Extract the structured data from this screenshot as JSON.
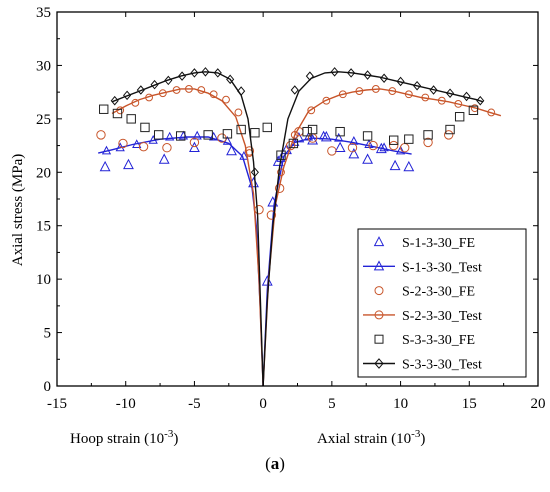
{
  "figure": {
    "caption_open": "(",
    "caption_letter": "a",
    "caption_close": ")"
  },
  "chart_data": {
    "type": "scatter",
    "ylabel": "Axial stress (MPa)",
    "xlabel_left": "Hoop strain (10",
    "xlabel_left_sup": "-3",
    "xlabel_left_close": ")",
    "xlabel_right": "Axial strain (10",
    "xlabel_right_sup": "-3",
    "xlabel_right_close": ")",
    "xlim": [
      -15,
      20
    ],
    "ylim": [
      0,
      35
    ],
    "x_ticks": [
      -15,
      -10,
      -5,
      0,
      5,
      10,
      15,
      20
    ],
    "y_ticks": [
      0,
      5,
      10,
      15,
      20,
      25,
      30,
      35
    ],
    "legend_position": "bottom-right",
    "series": [
      {
        "name": "S-1-3-30_FE",
        "kind": "markers",
        "marker": "triangle",
        "color": "#2323d6",
        "points": [
          [
            -11.5,
            20.5
          ],
          [
            -9.8,
            20.7
          ],
          [
            -7.2,
            21.2
          ],
          [
            -5.0,
            22.3
          ],
          [
            -2.3,
            22.0
          ],
          [
            -0.7,
            19.0
          ],
          [
            0.3,
            9.8
          ],
          [
            0.7,
            17.2
          ],
          [
            1.1,
            21.0
          ],
          [
            1.7,
            22.1
          ],
          [
            2.6,
            23.2
          ],
          [
            3.6,
            23.0
          ],
          [
            4.6,
            23.3
          ],
          [
            5.6,
            22.3
          ],
          [
            6.6,
            21.7
          ],
          [
            7.6,
            21.2
          ],
          [
            8.6,
            22.2
          ],
          [
            9.6,
            20.6
          ],
          [
            10.6,
            20.5
          ]
        ]
      },
      {
        "name": "S-1-3-30_Test",
        "kind": "line",
        "marker": "triangle",
        "color": "#2323d6",
        "points": [
          [
            0,
            0
          ],
          [
            -0.2,
            7.0
          ],
          [
            -0.5,
            15.0
          ],
          [
            -0.8,
            18.5
          ],
          [
            -1.5,
            21.5
          ],
          [
            -2.5,
            22.7
          ],
          [
            -4.0,
            23.3
          ],
          [
            -5.5,
            23.3
          ],
          [
            -7.5,
            23.1
          ],
          [
            -9.5,
            22.6
          ],
          [
            -11.0,
            22.1
          ],
          [
            -12.0,
            21.8
          ],
          [
            0.3,
            9.0
          ],
          [
            0.8,
            17.0
          ],
          [
            1.5,
            21.5
          ],
          [
            2.3,
            22.8
          ],
          [
            3.5,
            23.2
          ],
          [
            5.0,
            23.1
          ],
          [
            6.5,
            22.8
          ],
          [
            8.0,
            22.4
          ],
          [
            9.5,
            22.0
          ],
          [
            10.8,
            21.7
          ]
        ],
        "line_segments": [
          [
            [
              0,
              0
            ],
            [
              -0.2,
              7.0
            ],
            [
              -0.5,
              15.0
            ],
            [
              -0.8,
              18.5
            ],
            [
              -1.5,
              21.5
            ],
            [
              -2.5,
              22.7
            ],
            [
              -4.0,
              23.3
            ],
            [
              -5.5,
              23.3
            ],
            [
              -7.5,
              23.1
            ],
            [
              -9.5,
              22.6
            ],
            [
              -11.0,
              22.1
            ],
            [
              -12.0,
              21.8
            ]
          ],
          [
            [
              0,
              0
            ],
            [
              0.3,
              9.0
            ],
            [
              0.8,
              17.0
            ],
            [
              1.5,
              21.5
            ],
            [
              2.3,
              22.8
            ],
            [
              3.5,
              23.2
            ],
            [
              5.0,
              23.1
            ],
            [
              6.5,
              22.8
            ],
            [
              8.0,
              22.4
            ],
            [
              9.5,
              22.0
            ],
            [
              10.8,
              21.7
            ]
          ]
        ],
        "marker_points": [
          [
            -11.4,
            22.0
          ],
          [
            -10.4,
            22.3
          ],
          [
            -9.2,
            22.6
          ],
          [
            -8.0,
            23.0
          ],
          [
            -6.8,
            23.3
          ],
          [
            -5.8,
            23.4
          ],
          [
            -4.8,
            23.4
          ],
          [
            -3.6,
            23.3
          ],
          [
            -2.6,
            22.9
          ],
          [
            -1.4,
            21.5
          ],
          [
            1.3,
            21.3
          ],
          [
            2.3,
            22.8
          ],
          [
            3.3,
            23.3
          ],
          [
            4.4,
            23.4
          ],
          [
            5.5,
            23.2
          ],
          [
            6.6,
            22.9
          ],
          [
            7.7,
            22.6
          ],
          [
            8.8,
            22.3
          ],
          [
            10.0,
            22.0
          ]
        ]
      },
      {
        "name": "S-2-3-30_FE",
        "kind": "markers",
        "marker": "circle",
        "color": "#c8552a",
        "points": [
          [
            -11.8,
            23.5
          ],
          [
            -10.2,
            22.7
          ],
          [
            -8.7,
            22.4
          ],
          [
            -7.0,
            22.3
          ],
          [
            -5.0,
            22.8
          ],
          [
            -3.0,
            23.2
          ],
          [
            -1.0,
            22.0
          ],
          [
            -0.3,
            16.5
          ],
          [
            0.6,
            16.0
          ],
          [
            1.2,
            18.5
          ],
          [
            2.0,
            22.5
          ],
          [
            2.6,
            23.8
          ],
          [
            3.6,
            23.2
          ],
          [
            5.0,
            22.0
          ],
          [
            6.5,
            22.3
          ],
          [
            8.0,
            22.5
          ],
          [
            9.5,
            22.5
          ],
          [
            10.3,
            22.3
          ],
          [
            12.0,
            22.8
          ],
          [
            13.5,
            23.5
          ]
        ]
      },
      {
        "name": "S-2-3-30_Test",
        "kind": "line",
        "marker": "circle",
        "color": "#c8552a",
        "line_segments": [
          [
            [
              0,
              0
            ],
            [
              -0.3,
              10.0
            ],
            [
              -0.7,
              18.0
            ],
            [
              -1.3,
              22.5
            ],
            [
              -2.0,
              25.2
            ],
            [
              -3.0,
              26.7
            ],
            [
              -4.0,
              27.4
            ],
            [
              -5.0,
              27.8
            ],
            [
              -6.0,
              27.8
            ],
            [
              -7.0,
              27.5
            ],
            [
              -8.0,
              27.2
            ],
            [
              -9.0,
              26.8
            ],
            [
              -10.0,
              26.2
            ],
            [
              -11.0,
              25.5
            ]
          ],
          [
            [
              0,
              0
            ],
            [
              0.4,
              10.0
            ],
            [
              0.9,
              17.0
            ],
            [
              1.5,
              20.5
            ],
            [
              2.3,
              23.5
            ],
            [
              3.3,
              25.7
            ],
            [
              4.5,
              26.7
            ],
            [
              5.5,
              27.2
            ],
            [
              6.5,
              27.5
            ],
            [
              7.5,
              27.7
            ],
            [
              8.5,
              27.8
            ],
            [
              9.5,
              27.6
            ],
            [
              10.5,
              27.3
            ],
            [
              11.5,
              27.0
            ],
            [
              12.5,
              26.8
            ],
            [
              13.5,
              26.6
            ],
            [
              14.5,
              26.3
            ],
            [
              15.5,
              26.0
            ],
            [
              16.5,
              25.6
            ],
            [
              17.3,
              25.3
            ]
          ]
        ],
        "marker_points": [
          [
            -10.4,
            25.8
          ],
          [
            -9.3,
            26.5
          ],
          [
            -8.3,
            27.0
          ],
          [
            -7.3,
            27.4
          ],
          [
            -6.3,
            27.7
          ],
          [
            -5.4,
            27.8
          ],
          [
            -4.5,
            27.7
          ],
          [
            -3.6,
            27.3
          ],
          [
            -2.7,
            26.8
          ],
          [
            -1.8,
            25.6
          ],
          [
            -1.0,
            21.8
          ],
          [
            1.3,
            20.0
          ],
          [
            2.3,
            23.5
          ],
          [
            3.5,
            25.8
          ],
          [
            4.6,
            26.7
          ],
          [
            5.8,
            27.3
          ],
          [
            7.0,
            27.6
          ],
          [
            8.2,
            27.8
          ],
          [
            9.4,
            27.6
          ],
          [
            10.6,
            27.3
          ],
          [
            11.8,
            27.0
          ],
          [
            13.0,
            26.7
          ],
          [
            14.2,
            26.4
          ],
          [
            15.4,
            26.0
          ],
          [
            16.6,
            25.6
          ]
        ]
      },
      {
        "name": "S-3-3-30_FE",
        "kind": "markers",
        "marker": "square",
        "color": "#222222",
        "points": [
          [
            -11.6,
            25.9
          ],
          [
            -10.6,
            25.5
          ],
          [
            -9.6,
            25.0
          ],
          [
            -8.6,
            24.2
          ],
          [
            -7.6,
            23.5
          ],
          [
            -6.0,
            23.4
          ],
          [
            -4.0,
            23.5
          ],
          [
            -2.6,
            23.6
          ],
          [
            -1.6,
            24.0
          ],
          [
            -0.6,
            23.7
          ],
          [
            0.3,
            24.2
          ],
          [
            1.3,
            21.6
          ],
          [
            2.2,
            22.7
          ],
          [
            3.2,
            23.8
          ],
          [
            3.6,
            24.0
          ],
          [
            5.6,
            23.8
          ],
          [
            7.6,
            23.4
          ],
          [
            9.5,
            23.0
          ],
          [
            10.6,
            23.1
          ],
          [
            12.0,
            23.5
          ],
          [
            13.6,
            24.0
          ],
          [
            14.3,
            25.2
          ],
          [
            15.3,
            25.8
          ]
        ]
      },
      {
        "name": "S-3-3-30_Test",
        "kind": "line",
        "marker": "diamond",
        "color": "#111111",
        "line_segments": [
          [
            [
              0,
              0
            ],
            [
              -0.2,
              8.0
            ],
            [
              -0.4,
              16.0
            ],
            [
              -0.7,
              21.0
            ],
            [
              -1.1,
              25.0
            ],
            [
              -1.6,
              27.2
            ],
            [
              -2.4,
              28.7
            ],
            [
              -3.3,
              29.3
            ],
            [
              -4.2,
              29.4
            ],
            [
              -5.0,
              29.3
            ],
            [
              -6.0,
              29.0
            ],
            [
              -7.0,
              28.6
            ],
            [
              -8.0,
              28.1
            ],
            [
              -9.0,
              27.6
            ],
            [
              -10.0,
              27.1
            ],
            [
              -11.0,
              26.6
            ]
          ],
          [
            [
              0,
              0
            ],
            [
              0.3,
              8.0
            ],
            [
              0.7,
              15.0
            ],
            [
              1.2,
              20.5
            ],
            [
              1.8,
              25.0
            ],
            [
              2.6,
              27.6
            ],
            [
              3.5,
              28.8
            ],
            [
              4.5,
              29.3
            ],
            [
              5.5,
              29.4
            ],
            [
              6.5,
              29.3
            ],
            [
              7.5,
              29.1
            ],
            [
              8.5,
              28.9
            ],
            [
              9.5,
              28.6
            ],
            [
              10.5,
              28.3
            ],
            [
              11.5,
              28.0
            ],
            [
              12.5,
              27.7
            ],
            [
              13.5,
              27.4
            ],
            [
              14.5,
              27.1
            ],
            [
              15.5,
              26.8
            ],
            [
              16.0,
              26.6
            ]
          ]
        ],
        "marker_points": [
          [
            -10.8,
            26.7
          ],
          [
            -9.9,
            27.2
          ],
          [
            -8.9,
            27.7
          ],
          [
            -7.9,
            28.2
          ],
          [
            -6.9,
            28.6
          ],
          [
            -5.9,
            29.0
          ],
          [
            -5.0,
            29.3
          ],
          [
            -4.2,
            29.4
          ],
          [
            -3.3,
            29.3
          ],
          [
            -2.4,
            28.7
          ],
          [
            -1.6,
            27.6
          ],
          [
            -0.6,
            20.0
          ],
          [
            2.3,
            27.7
          ],
          [
            3.4,
            29.0
          ],
          [
            5.2,
            29.4
          ],
          [
            6.4,
            29.3
          ],
          [
            7.6,
            29.1
          ],
          [
            8.8,
            28.8
          ],
          [
            10.0,
            28.5
          ],
          [
            11.2,
            28.1
          ],
          [
            12.4,
            27.7
          ],
          [
            13.6,
            27.4
          ],
          [
            14.8,
            27.1
          ],
          [
            15.8,
            26.7
          ]
        ]
      }
    ]
  }
}
